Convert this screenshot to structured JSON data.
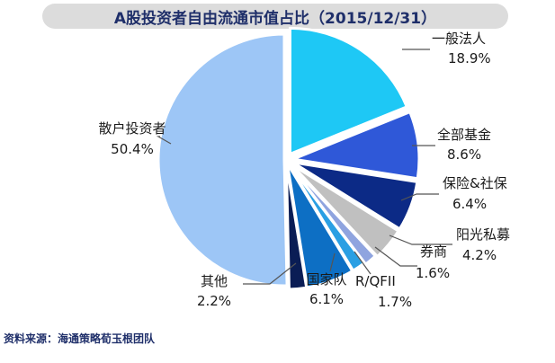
{
  "chart_data": {
    "type": "pie",
    "title": "A股投资者自由流通市值占比（2015/12/31）",
    "slices": [
      {
        "label": "一般法人",
        "value_text": "18.9%",
        "value": 18.9,
        "color": "#1ec8f5"
      },
      {
        "label": "全部基金",
        "value_text": "8.6%",
        "value": 8.6,
        "color": "#2f58d8"
      },
      {
        "label": "保险&社保",
        "value_text": "6.4%",
        "value": 6.4,
        "color": "#0c2a86"
      },
      {
        "label": "阳光私募",
        "value_text": "4.2%",
        "value": 4.2,
        "color": "#c0c0c0"
      },
      {
        "label": "券商",
        "value_text": "1.6%",
        "value": 1.6,
        "color": "#8fa4df"
      },
      {
        "label": "R/QFII",
        "value_text": "1.7%",
        "value": 1.7,
        "color": "#2a9fe3"
      },
      {
        "label": "国家队",
        "value_text": "6.1%",
        "value": 6.1,
        "color": "#0d6fc4"
      },
      {
        "label": "其他",
        "value_text": "2.2%",
        "value": 2.2,
        "color": "#0a1d55"
      },
      {
        "label": "散户投资者",
        "value_text": "50.4%",
        "value": 50.4,
        "color": "#9dc6f6"
      }
    ]
  },
  "source": "资料来源：海通策略荀玉根团队"
}
